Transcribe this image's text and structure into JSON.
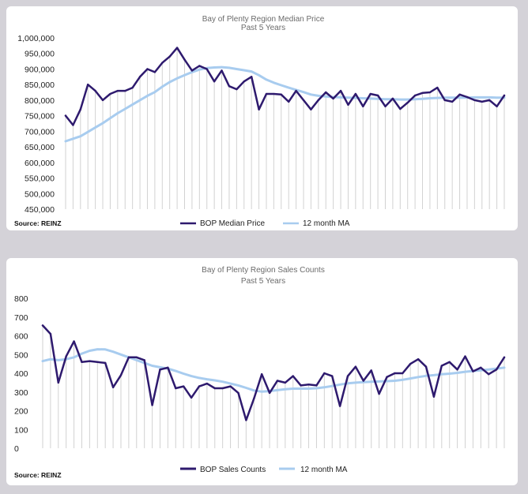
{
  "colors": {
    "price": "#2e1a6e",
    "ma": "#a8ccef",
    "drop": "#d2d2d2",
    "background": "#d4d2d8"
  },
  "chart_data": [
    {
      "type": "line",
      "title": "Bay of Plenty Region Median Price",
      "subtitle": "Past 5 Years",
      "source": "Source: REINZ",
      "ylim": [
        450000,
        1000000
      ],
      "yticks": [
        450000,
        500000,
        550000,
        600000,
        650000,
        700000,
        750000,
        800000,
        850000,
        900000,
        950000,
        1000000
      ],
      "ytick_labels": [
        "450,000",
        "500,000",
        "550,000",
        "600,000",
        "650,000",
        "700,000",
        "750,000",
        "800,000",
        "850,000",
        "900,000",
        "950,000",
        "1,000,000"
      ],
      "series": [
        {
          "name": "BOP Median Price",
          "color": "#2e1a6e",
          "values": [
            750000,
            720000,
            770000,
            850000,
            830000,
            800000,
            820000,
            830000,
            830000,
            840000,
            875000,
            900000,
            890000,
            920000,
            940000,
            968000,
            930000,
            895000,
            910000,
            900000,
            860000,
            895000,
            845000,
            835000,
            860000,
            875000,
            770000,
            820000,
            820000,
            818000,
            795000,
            830000,
            800000,
            770000,
            800000,
            825000,
            805000,
            830000,
            785000,
            820000,
            780000,
            820000,
            815000,
            780000,
            805000,
            772000,
            792000,
            815000,
            823000,
            825000,
            840000,
            800000,
            795000,
            818000,
            810000,
            800000,
            795000,
            800000,
            780000,
            815000
          ]
        },
        {
          "name": "12 month MA",
          "color": "#a8ccef",
          "values": [
            668000,
            676000,
            684000,
            698000,
            712000,
            726000,
            742000,
            758000,
            772000,
            786000,
            800000,
            814000,
            826000,
            843000,
            858000,
            870000,
            880000,
            890000,
            898000,
            903000,
            905000,
            906000,
            904000,
            900000,
            896000,
            892000,
            880000,
            866000,
            856000,
            848000,
            840000,
            833000,
            826000,
            818000,
            814000,
            812000,
            810000,
            809000,
            808000,
            807000,
            806000,
            805000,
            804000,
            803000,
            803000,
            802000,
            802000,
            803000,
            804000,
            806000,
            807000,
            808000,
            808000,
            808000,
            808000,
            809000,
            809000,
            809000,
            808000,
            808000
          ]
        }
      ],
      "legend": [
        "BOP Median Price",
        "12 month MA"
      ]
    },
    {
      "type": "line",
      "title": "Bay of Plenty Region Sales Counts",
      "subtitle": "Past 5 Years",
      "source": "Source: REINZ",
      "ylim": [
        0,
        800
      ],
      "yticks": [
        0,
        100,
        200,
        300,
        400,
        500,
        600,
        700,
        800
      ],
      "ytick_labels": [
        "0",
        "100",
        "200",
        "300",
        "400",
        "500",
        "600",
        "700",
        "800"
      ],
      "series": [
        {
          "name": "BOP Sales Counts",
          "color": "#2e1a6e",
          "values": [
            655,
            610,
            350,
            490,
            570,
            460,
            465,
            460,
            455,
            325,
            390,
            485,
            485,
            470,
            230,
            420,
            430,
            320,
            330,
            270,
            330,
            345,
            320,
            320,
            330,
            295,
            150,
            265,
            395,
            295,
            360,
            350,
            385,
            335,
            340,
            335,
            400,
            385,
            225,
            385,
            435,
            360,
            415,
            290,
            380,
            400,
            400,
            450,
            475,
            435,
            275,
            440,
            460,
            420,
            490,
            410,
            430,
            395,
            420,
            485
          ]
        },
        {
          "name": "12 month MA",
          "color": "#a8ccef",
          "values": [
            465,
            475,
            470,
            475,
            485,
            505,
            520,
            528,
            527,
            515,
            500,
            485,
            470,
            455,
            440,
            432,
            425,
            412,
            398,
            385,
            375,
            368,
            362,
            355,
            345,
            335,
            322,
            308,
            302,
            305,
            310,
            315,
            318,
            318,
            318,
            320,
            325,
            332,
            340,
            346,
            350,
            353,
            355,
            356,
            358,
            360,
            365,
            372,
            380,
            386,
            390,
            395,
            398,
            402,
            408,
            412,
            416,
            420,
            425,
            430
          ]
        }
      ],
      "legend": [
        "BOP Sales Counts",
        "12 month MA"
      ]
    }
  ]
}
